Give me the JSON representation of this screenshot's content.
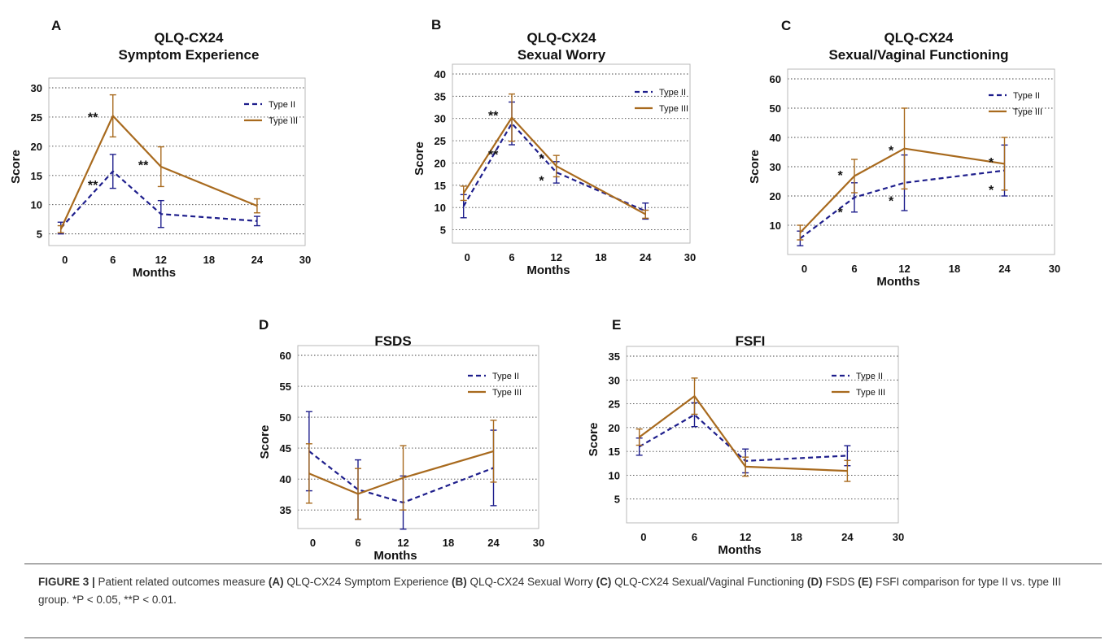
{
  "chart_data": [
    {
      "panel": "A",
      "type": "line",
      "title": [
        "QLQ-CX24",
        "Symptom Experience"
      ],
      "xlabel": "Months",
      "ylabel": "Score",
      "xlim": [
        -2,
        30
      ],
      "xticks": [
        0,
        6,
        12,
        18,
        24,
        30
      ],
      "ylim": [
        3,
        30
      ],
      "yticks": [
        5,
        10,
        15,
        20,
        25,
        30
      ],
      "grid": "horizontal-dotted",
      "legend": "top-right",
      "x": [
        -0.5,
        6,
        12,
        24
      ],
      "series": [
        {
          "name": "Type II",
          "style": "dashed",
          "color": "#1e1e8c",
          "values": [
            6,
            15.7,
            8.4,
            7.2
          ],
          "err": [
            1.0,
            2.9,
            2.3,
            0.8
          ]
        },
        {
          "name": "Type III",
          "style": "solid",
          "color": "#a86a1e",
          "values": [
            5.8,
            25.2,
            16.5,
            9.8
          ],
          "err": [
            0.6,
            3.6,
            3.4,
            1.2
          ]
        }
      ],
      "annotations": [
        {
          "text": "**",
          "x": 3.5,
          "y": 25.2
        },
        {
          "text": "**",
          "x": 3.5,
          "y": 13.6
        },
        {
          "text": "**",
          "x": 9.8,
          "y": 17.0
        }
      ]
    },
    {
      "panel": "B",
      "type": "line",
      "title": [
        "QLQ-CX24",
        "Sexual Worry"
      ],
      "xlabel": "Months",
      "ylabel": "Score",
      "xlim": [
        -2,
        30
      ],
      "xticks": [
        0,
        6,
        12,
        18,
        24,
        30
      ],
      "ylim": [
        2,
        40
      ],
      "yticks": [
        5,
        10,
        15,
        20,
        25,
        30,
        35,
        40
      ],
      "grid": "horizontal-dotted",
      "legend": "top-right",
      "x": [
        -0.5,
        6,
        12,
        24
      ],
      "series": [
        {
          "name": "Type II",
          "style": "dashed",
          "color": "#1e1e8c",
          "values": [
            10.3,
            28.9,
            17.9,
            9.2
          ],
          "err": [
            2.6,
            4.8,
            2.4,
            1.8
          ]
        },
        {
          "name": "Type III",
          "style": "solid",
          "color": "#a86a1e",
          "values": [
            13.2,
            30.2,
            19.3,
            8.5
          ],
          "err": [
            1.6,
            5.3,
            2.4,
            0.9
          ]
        }
      ],
      "annotations": [
        {
          "text": "**",
          "x": 3.5,
          "y": 31.0
        },
        {
          "text": "**",
          "x": 3.5,
          "y": 22.2
        },
        {
          "text": "*",
          "x": 10.0,
          "y": 21.3
        },
        {
          "text": "*",
          "x": 10.0,
          "y": 16.3
        }
      ]
    },
    {
      "panel": "C",
      "type": "line",
      "title": [
        "QLQ-CX24",
        "Sexual/Vaginal Functioning"
      ],
      "xlabel": "Months",
      "ylabel": "Score",
      "xlim": [
        -2,
        30
      ],
      "xticks": [
        0,
        6,
        12,
        18,
        24,
        30
      ],
      "ylim": [
        0,
        60
      ],
      "yticks": [
        10,
        20,
        30,
        40,
        50,
        60
      ],
      "grid": "horizontal-dotted",
      "legend": "top-right",
      "x": [
        -0.5,
        6,
        12,
        24
      ],
      "series": [
        {
          "name": "Type II",
          "style": "dashed",
          "color": "#1e1e8c",
          "values": [
            5.5,
            19.5,
            24.5,
            28.7
          ],
          "err": [
            2.5,
            5.0,
            9.5,
            8.7
          ]
        },
        {
          "name": "Type III",
          "style": "solid",
          "color": "#a86a1e",
          "values": [
            7.5,
            26.8,
            36.2,
            31.0
          ],
          "err": [
            2.5,
            5.7,
            13.8,
            9.0
          ]
        }
      ],
      "annotations": [
        {
          "text": "*",
          "x": 4.3,
          "y": 27.5
        },
        {
          "text": "*",
          "x": 4.3,
          "y": 14.8
        },
        {
          "text": "*",
          "x": 10.4,
          "y": 36.0
        },
        {
          "text": "*",
          "x": 10.4,
          "y": 18.8
        },
        {
          "text": "*",
          "x": 22.4,
          "y": 32.0
        },
        {
          "text": "*",
          "x": 22.4,
          "y": 22.5
        }
      ]
    },
    {
      "panel": "D",
      "type": "line",
      "title": [
        "FSDS"
      ],
      "xlabel": "Months",
      "ylabel": "Score",
      "xlim": [
        -2,
        30
      ],
      "xticks": [
        0,
        6,
        12,
        18,
        24,
        30
      ],
      "ylim": [
        32,
        60
      ],
      "yticks": [
        35,
        40,
        45,
        50,
        55,
        60
      ],
      "grid": "horizontal-dotted",
      "legend": "top-right",
      "x": [
        -0.5,
        6,
        12,
        24
      ],
      "series": [
        {
          "name": "Type II",
          "style": "dashed",
          "color": "#1e1e8c",
          "values": [
            44.5,
            38.3,
            36.2,
            41.8
          ],
          "err": [
            6.4,
            4.8,
            4.3,
            6.1
          ]
        },
        {
          "name": "Type III",
          "style": "solid",
          "color": "#a86a1e",
          "values": [
            40.9,
            37.6,
            40.2,
            44.5
          ],
          "err": [
            4.8,
            4.1,
            5.2,
            5.0
          ]
        }
      ],
      "annotations": []
    },
    {
      "panel": "E",
      "type": "line",
      "title": [
        "FSFI"
      ],
      "xlabel": "Months",
      "ylabel": "Score",
      "xlim": [
        -2,
        30
      ],
      "xticks": [
        0,
        6,
        12,
        18,
        24,
        30
      ],
      "ylim": [
        0,
        35
      ],
      "yticks": [
        5,
        10,
        15,
        20,
        25,
        30,
        35
      ],
      "grid": "horizontal-dotted",
      "legend": "top-right",
      "x": [
        -0.5,
        6,
        12,
        24
      ],
      "series": [
        {
          "name": "Type II",
          "style": "dashed",
          "color": "#1e1e8c",
          "values": [
            16.0,
            22.7,
            13.0,
            14.1
          ],
          "err": [
            1.8,
            2.5,
            2.5,
            2.1
          ]
        },
        {
          "name": "Type III",
          "style": "solid",
          "color": "#a86a1e",
          "values": [
            18.0,
            26.6,
            11.8,
            10.9
          ],
          "err": [
            1.7,
            3.8,
            2.0,
            2.2
          ]
        }
      ],
      "annotations": []
    }
  ],
  "caption": {
    "figure_label": "FIGURE 3 |",
    "intro": " Patient related outcomes measure ",
    "parts": [
      {
        "tag": "(A)",
        "text": " QLQ-CX24 Symptom Experience "
      },
      {
        "tag": "(B)",
        "text": " QLQ-CX24 Sexual Worry "
      },
      {
        "tag": "(C)",
        "text": " QLQ-CX24 Sexual/Vaginal Functioning "
      },
      {
        "tag": "(D)",
        "text": " FSDS "
      },
      {
        "tag": "(E)",
        "text": " FSFI comparison for type II vs. type III group. *P < 0.05, **P < 0.01."
      }
    ]
  }
}
